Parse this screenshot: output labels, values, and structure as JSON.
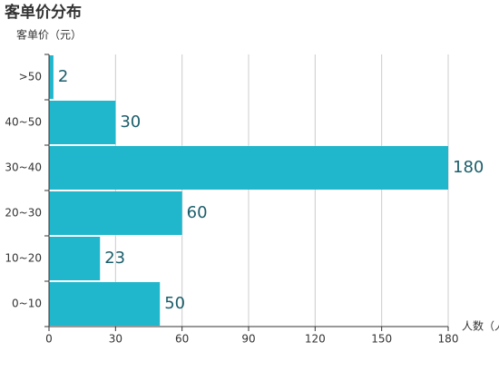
{
  "chart_data": {
    "type": "bar",
    "orientation": "horizontal",
    "title": "客单价分布",
    "y_label": "客单价（元）",
    "x_label": "人数（人）",
    "categories": [
      "0~10",
      "10~20",
      "20~30",
      "30~40",
      "40~50",
      ">50"
    ],
    "values": [
      50,
      23,
      60,
      180,
      30,
      2
    ],
    "color": "#20b6cc",
    "xlim": [
      0,
      180
    ],
    "xticks": [
      0,
      30,
      60,
      90,
      120,
      150,
      180
    ],
    "grid": true
  }
}
